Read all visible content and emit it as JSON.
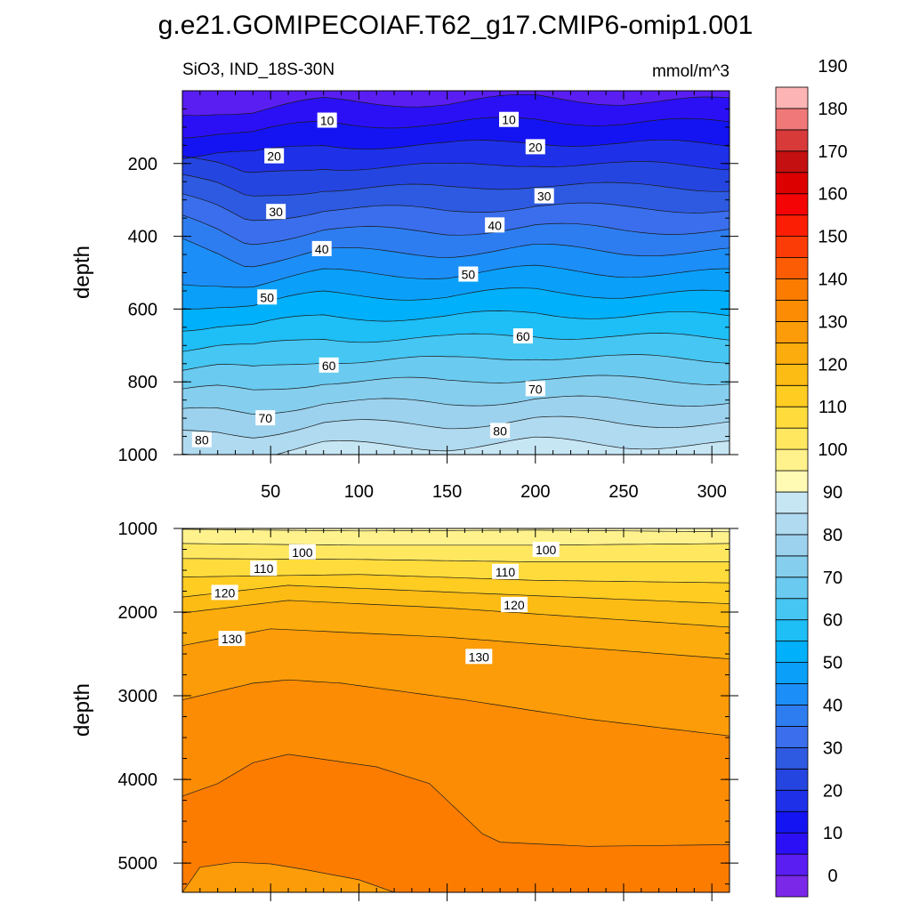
{
  "chart_data": {
    "type": "heatmap",
    "title": "g.e21.GOMIPECOIAF.T62_g17.CMIP6-omip1.001",
    "subtitle_left": "SiO3, IND_18S-30N",
    "units": "mmol/m^3",
    "colorbar": {
      "levels": [
        -5,
        0,
        5,
        10,
        15,
        20,
        25,
        30,
        35,
        40,
        45,
        50,
        55,
        60,
        65,
        70,
        75,
        80,
        85,
        90,
        95,
        100,
        105,
        110,
        115,
        120,
        125,
        130,
        135,
        140,
        145,
        150,
        155,
        160,
        165,
        170,
        175,
        180,
        185,
        190,
        195
      ],
      "tick_labels": [
        "0",
        "10",
        "20",
        "30",
        "40",
        "50",
        "60",
        "70",
        "80",
        "90",
        "100",
        "110",
        "120",
        "130",
        "140",
        "150",
        "160",
        "170",
        "180",
        "190"
      ],
      "colors": [
        "#7b28e8",
        "#5a1ef2",
        "#2b10f5",
        "#1414f2",
        "#1e30e8",
        "#2545e0",
        "#2d5ae0",
        "#3a6eec",
        "#2e7df0",
        "#1c8ef8",
        "#0aa0fa",
        "#00b0fa",
        "#1ebef6",
        "#46c6f2",
        "#6acaf0",
        "#86ceee",
        "#9cd2ee",
        "#b0daf0",
        "#c6e6f4",
        "#fffab4",
        "#fff28c",
        "#ffe860",
        "#ffdc3c",
        "#ffcc22",
        "#fcbc14",
        "#fcac0c",
        "#fc9c08",
        "#fc8c04",
        "#fc7c00",
        "#fc5c04",
        "#fc3c06",
        "#fc1e04",
        "#f40404",
        "#dc0000",
        "#c41010",
        "#d83a3a",
        "#f07878",
        "#fcb4b4"
      ]
    },
    "panels": [
      {
        "name": "upper",
        "ylabel": "depth",
        "ylim": [
          0,
          1000
        ],
        "xlim": [
          0,
          310
        ],
        "yticks": [
          200,
          400,
          600,
          800,
          1000
        ],
        "xticks": [
          50,
          100,
          150,
          200,
          250,
          300
        ],
        "contour_labels": [
          {
            "text": "10",
            "x": 82,
            "y": 82
          },
          {
            "text": "10",
            "x": 185,
            "y": 80
          },
          {
            "text": "20",
            "x": 52,
            "y": 180
          },
          {
            "text": "20",
            "x": 200,
            "y": 155
          },
          {
            "text": "30",
            "x": 53,
            "y": 333
          },
          {
            "text": "30",
            "x": 205,
            "y": 290
          },
          {
            "text": "40",
            "x": 79,
            "y": 435
          },
          {
            "text": "40",
            "x": 177,
            "y": 370
          },
          {
            "text": "50",
            "x": 48,
            "y": 568
          },
          {
            "text": "50",
            "x": 162,
            "y": 505
          },
          {
            "text": "60",
            "x": 83,
            "y": 755
          },
          {
            "text": "60",
            "x": 193,
            "y": 675
          },
          {
            "text": "70",
            "x": 47,
            "y": 900
          },
          {
            "text": "70",
            "x": 200,
            "y": 820
          },
          {
            "text": "80",
            "x": 11,
            "y": 960
          },
          {
            "text": "80",
            "x": 180,
            "y": 935
          }
        ]
      },
      {
        "name": "lower",
        "ylabel": "depth",
        "ylim": [
          1000,
          5350
        ],
        "xlim": [
          0,
          310
        ],
        "yticks": [
          1000,
          2000,
          3000,
          4000,
          5000
        ],
        "contour_labels": [
          {
            "text": "100",
            "x": 68,
            "y": 1285
          },
          {
            "text": "100",
            "x": 206,
            "y": 1255
          },
          {
            "text": "110",
            "x": 46,
            "y": 1480
          },
          {
            "text": "110",
            "x": 183,
            "y": 1520
          },
          {
            "text": "120",
            "x": 24,
            "y": 1770
          },
          {
            "text": "120",
            "x": 188,
            "y": 1915
          },
          {
            "text": "130",
            "x": 28,
            "y": 2320
          },
          {
            "text": "130",
            "x": 168,
            "y": 2535
          }
        ]
      }
    ]
  }
}
